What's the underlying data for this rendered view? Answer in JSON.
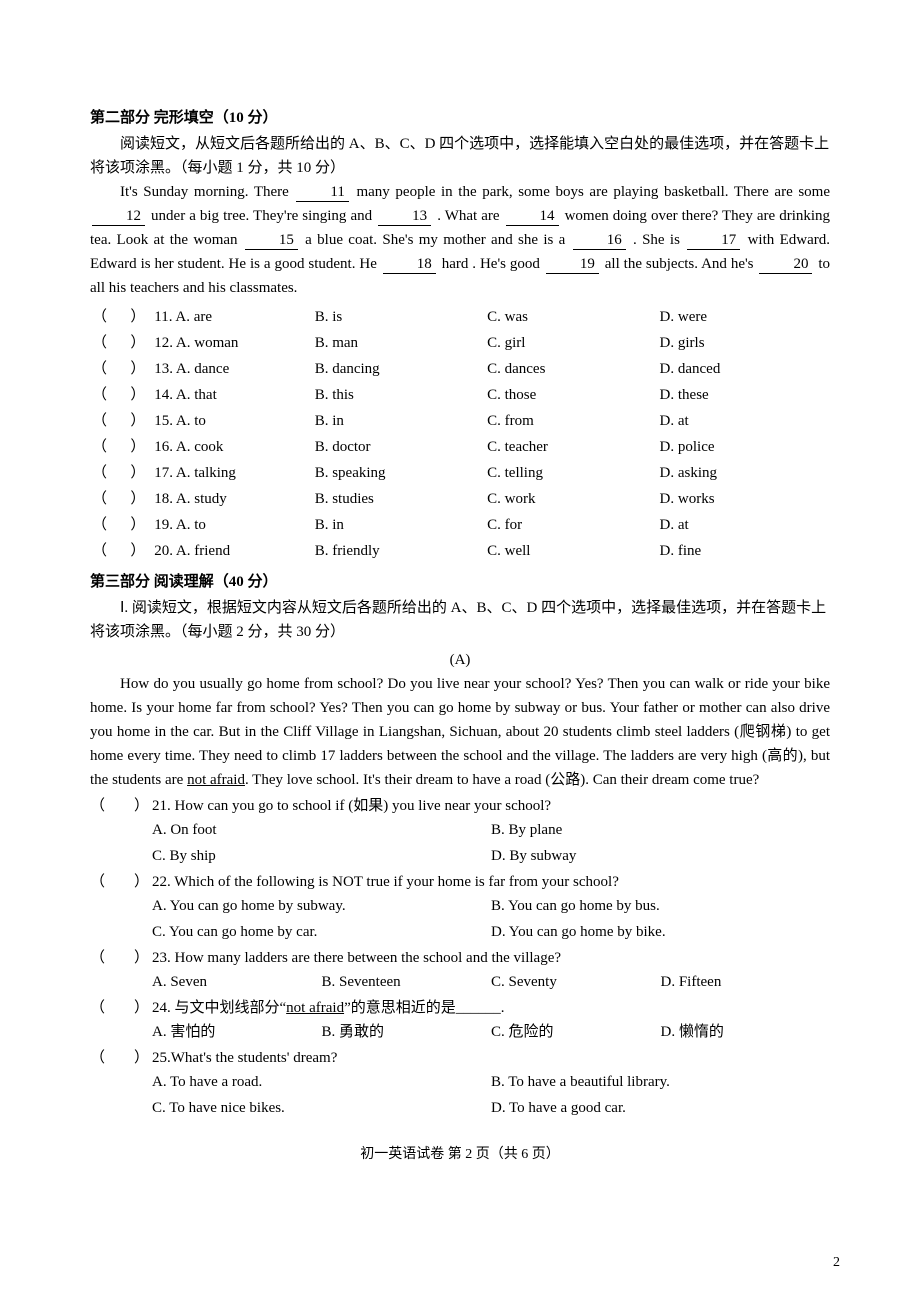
{
  "section2": {
    "header": "第二部分  完形填空（10 分）",
    "instruction": "阅读短文，从短文后各题所给出的 A、B、C、D 四个选项中，选择能填入空白处的最佳选项，并在答题卡上将该项涂黑。（每小题 1 分，共 10 分）",
    "passage_pre_11": "It's Sunday morning. There",
    "b11": "11",
    "p_11_12": "many people in the park, some boys are playing basketball. There are some",
    "b12": "12",
    "p_12_13": "under a big tree. They're singing and",
    "b13": "13",
    "p_13_14": ". What are ",
    "b14": "14",
    "p_14_15": "women doing over there? They are drinking tea. Look at the woman",
    "b15": "15",
    "p_15_16": "a blue coat. She's my mother and she is a",
    "b16": "16",
    "p_16_17": ". She is",
    "b17": "17",
    "p_17_18": "with Edward. Edward is her student. He is a good student. He",
    "b18": "18",
    "p_18_19": "hard . He's good",
    "b19": "19",
    "p_19_20": "all the subjects. And he's",
    "b20": "20",
    "p_after_20": "to all his teachers and his classmates.",
    "options": [
      {
        "n": "11",
        "a": "A. are",
        "b": "B. is",
        "c": "C. was",
        "d": "D. were"
      },
      {
        "n": "12",
        "a": "A. woman",
        "b": "B. man",
        "c": "C. girl",
        "d": "D. girls"
      },
      {
        "n": "13",
        "a": "A. dance",
        "b": "B. dancing",
        "c": "C. dances",
        "d": "D. danced"
      },
      {
        "n": "14",
        "a": "A. that",
        "b": "B. this",
        "c": "C. those",
        "d": "D. these"
      },
      {
        "n": "15",
        "a": "A. to",
        "b": "B. in",
        "c": "C. from",
        "d": "D. at"
      },
      {
        "n": "16",
        "a": "A. cook",
        "b": "B. doctor",
        "c": "C. teacher",
        "d": "D. police"
      },
      {
        "n": "17",
        "a": "A. talking",
        "b": "B. speaking",
        "c": "C. telling",
        "d": "D. asking"
      },
      {
        "n": "18",
        "a": "A. study",
        "b": "B. studies",
        "c": "C. work",
        "d": "D. works"
      },
      {
        "n": "19",
        "a": "A. to",
        "b": "B. in",
        "c": "C. for",
        "d": "D. at"
      },
      {
        "n": "20",
        "a": "A. friend",
        "b": "B. friendly",
        "c": "C. well",
        "d": "D. fine"
      }
    ]
  },
  "section3": {
    "header": "第三部分  阅读理解（40 分）",
    "sub_instruction": "Ⅰ. 阅读短文，根据短文内容从短文后各题所给出的 A、B、C、D 四个选项中，选择最佳选项，并在答题卡上将该项涂黑。（每小题 2 分，共 30 分）",
    "letter": "(A)",
    "para": "How do you usually go home from school? Do you live near your school? Yes? Then you can walk or ride your bike home. Is your home far from school? Yes? Then you can go home by subway or bus. Your father or mother can also drive you home in the car. But in the Cliff Village in Liangshan, Sichuan, about 20 students climb steel ladders (爬钢梯) to get home every time. They need to climb 17 ladders between the school and the village. The ladders are very high (高的), but the students are ",
    "underline": "not afraid",
    "para_after": ". They love school. It's their dream to have a road (公路). Can their dream come true?",
    "q21": {
      "text": "21. How can you go to school if (如果) you live near your school?",
      "a": "A. On foot",
      "b": "B. By plane",
      "c": "C. By ship",
      "d": "D. By subway"
    },
    "q22": {
      "text": "22. Which of the following is NOT true if your home is far from your school?",
      "a": "A. You can go home by subway.",
      "b": "B. You can go home by bus.",
      "c": "C. You can go home by car.",
      "d": "D. You can go home by bike."
    },
    "q23": {
      "text": "23. How many ladders are there between the school and the village?",
      "a": "A. Seven",
      "b": "B. Seventeen",
      "c": "C. Seventy",
      "d": "D. Fifteen"
    },
    "q24": {
      "pre": "24. 与文中划线部分“",
      "u": "not afraid",
      "post": "”的意思相近的是______.",
      "a": "A.  害怕的",
      "b": "B.  勇敢的",
      "c": "C.  危险的",
      "d": "D.  懒惰的"
    },
    "q25": {
      "text": "25.What's the students' dream?",
      "a": "A. To have a road.",
      "b": "B. To have a beautiful library.",
      "c": "C. To have nice bikes.",
      "d": "D. To have a good car."
    }
  },
  "footer": "初一英语试卷   第 2 页（共 6 页）",
  "corner_number": "2"
}
